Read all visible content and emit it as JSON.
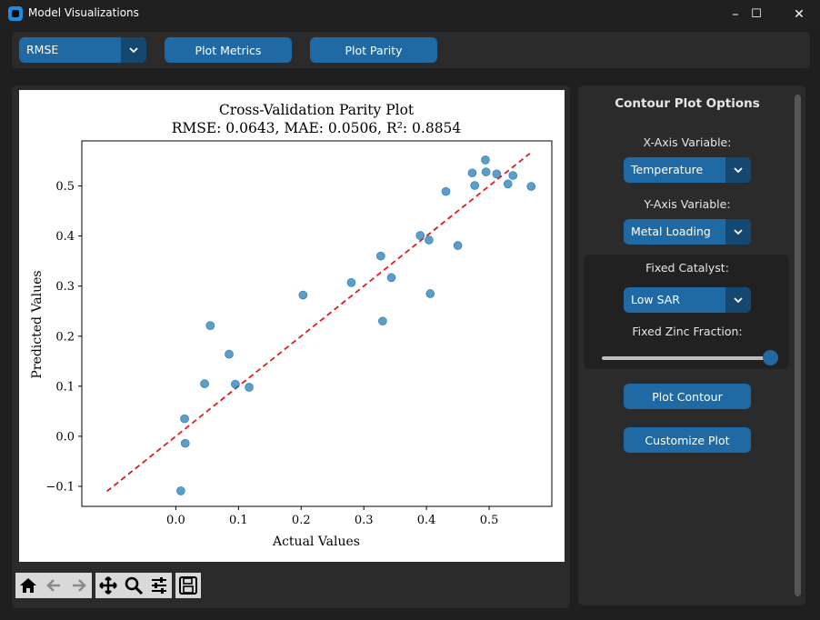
{
  "window": {
    "title": "Model Visualizations",
    "controls": {
      "minimize": "–",
      "maximize": "☐",
      "close": "✕"
    }
  },
  "topbar": {
    "metric_select": "RMSE",
    "plot_metrics": "Plot Metrics",
    "plot_parity": "Plot Parity"
  },
  "side": {
    "title": "Contour Plot Options",
    "x_axis_label": "X-Axis Variable:",
    "x_axis_value": "Temperature",
    "y_axis_label": "Y-Axis Variable:",
    "y_axis_value": "Metal Loading",
    "catalyst_label": "Fixed Catalyst:",
    "catalyst_value": "Low SAR",
    "zinc_label": "Fixed Zinc Fraction:",
    "zinc_slider_value": 1.0,
    "plot_contour": "Plot Contour",
    "customize_plot": "Customize Plot"
  },
  "toolbar": [
    "home-icon",
    "back-icon",
    "forward-icon",
    "pan-icon",
    "zoom-icon",
    "configure-icon",
    "save-icon"
  ],
  "colors": {
    "accent": "#1f6aa5",
    "accent_dark": "#144870",
    "points": "#1f77b4",
    "line": "#e31a1c"
  },
  "chart_data": {
    "type": "scatter",
    "title": "Cross-Validation Parity Plot",
    "subtitle": "RMSE: 0.0643, MAE: 0.0506, R²: 0.8854",
    "xlabel": "Actual Values",
    "ylabel": "Predicted Values",
    "xlim": [
      -0.15,
      0.6
    ],
    "ylim": [
      -0.14,
      0.59
    ],
    "xticks": [
      "0.0",
      "0.1",
      "0.2",
      "0.3",
      "0.4",
      "0.5"
    ],
    "xtick_values": [
      0.0,
      0.1,
      0.2,
      0.3,
      0.4,
      0.5
    ],
    "yticks": [
      "−0.1",
      "0.0",
      "0.1",
      "0.2",
      "0.3",
      "0.4",
      "0.5"
    ],
    "ytick_values": [
      -0.1,
      0.0,
      0.1,
      0.2,
      0.3,
      0.4,
      0.5
    ],
    "grid": false,
    "reference_line": {
      "from": [
        -0.11,
        -0.11
      ],
      "to": [
        0.565,
        0.565
      ],
      "style": "dashed"
    },
    "points": [
      [
        0.008,
        -0.109
      ],
      [
        0.015,
        -0.014
      ],
      [
        0.014,
        0.035
      ],
      [
        0.046,
        0.105
      ],
      [
        0.055,
        0.221
      ],
      [
        0.085,
        0.164
      ],
      [
        0.095,
        0.104
      ],
      [
        0.117,
        0.098
      ],
      [
        0.203,
        0.282
      ],
      [
        0.28,
        0.307
      ],
      [
        0.327,
        0.36
      ],
      [
        0.33,
        0.23
      ],
      [
        0.344,
        0.317
      ],
      [
        0.39,
        0.401
      ],
      [
        0.404,
        0.392
      ],
      [
        0.406,
        0.285
      ],
      [
        0.431,
        0.489
      ],
      [
        0.45,
        0.381
      ],
      [
        0.473,
        0.526
      ],
      [
        0.477,
        0.501
      ],
      [
        0.494,
        0.552
      ],
      [
        0.495,
        0.528
      ],
      [
        0.512,
        0.524
      ],
      [
        0.53,
        0.504
      ],
      [
        0.538,
        0.521
      ],
      [
        0.567,
        0.499
      ]
    ]
  }
}
